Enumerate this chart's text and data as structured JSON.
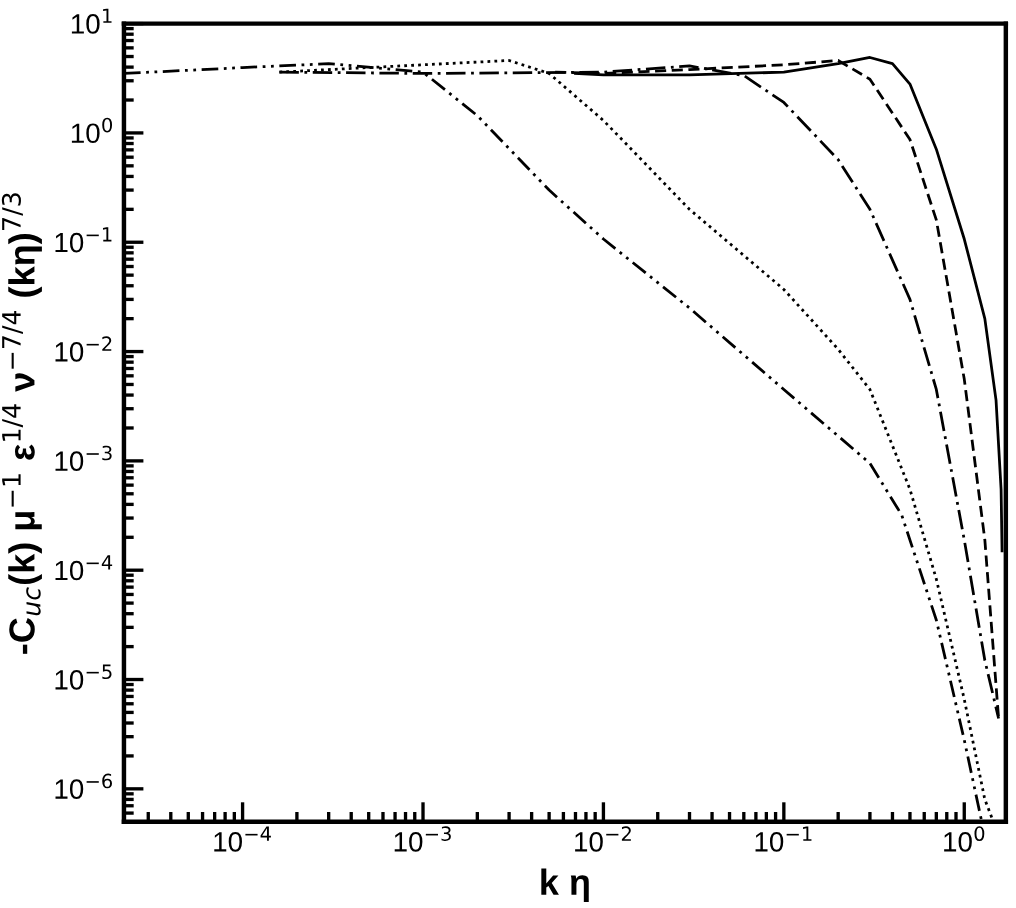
{
  "chart_data": {
    "type": "line",
    "xlabel": "k η",
    "ylabel": "-C$_{uc}$(k) μ$^{−1}$ ε$^{1/4}$ ν$^{−7/4}$ (kη)$^{7/3}$",
    "log": "xy",
    "grid": false,
    "legend": false,
    "marker": "none",
    "xlim": [
      2.2e-05,
      1.7
    ],
    "ylim": [
      5e-07,
      10
    ],
    "xticks": [
      {
        "value": 0.0001,
        "label": "10$^{−4}$"
      },
      {
        "value": 0.001,
        "label": "10$^{−3}$"
      },
      {
        "value": 0.01,
        "label": "10$^{−2}$"
      },
      {
        "value": 0.1,
        "label": "10$^{−1}$"
      },
      {
        "value": 1,
        "label": "10$^{0}$"
      }
    ],
    "yticks": [
      {
        "value": 1e-06,
        "label": "10$^{−6}$"
      },
      {
        "value": 1e-05,
        "label": "10$^{−5}$"
      },
      {
        "value": 0.0001,
        "label": "10$^{−4}$"
      },
      {
        "value": 0.001,
        "label": "10$^{−3}$"
      },
      {
        "value": 0.01,
        "label": "10$^{−2}$"
      },
      {
        "value": 0.1,
        "label": "10$^{−1}$"
      },
      {
        "value": 1,
        "label": "10$^{0}$"
      },
      {
        "value": 10,
        "label": "10$^{1}$"
      }
    ],
    "series": [
      {
        "color": "#000000",
        "line_style": "dashdotdot",
        "x": [
          2.2e-05,
          0.0001,
          0.0003,
          0.001,
          0.002,
          0.005,
          0.01,
          0.03,
          0.1,
          0.3,
          0.45,
          0.7,
          1.0,
          1.25
        ],
        "values": [
          3.5,
          3.96,
          4.3,
          3.6,
          1.44,
          0.3,
          0.107,
          0.025,
          0.0045,
          0.00095,
          0.00032,
          3.5e-05,
          2.8e-06,
          5e-07
        ]
      },
      {
        "color": "#000000",
        "line_style": "dotted",
        "x": [
          0.00016,
          0.001,
          0.003,
          0.005,
          0.01,
          0.03,
          0.1,
          0.2,
          0.3,
          0.5,
          0.7,
          1.0,
          1.3,
          1.45
        ],
        "values": [
          3.6,
          4.2,
          4.6,
          3.5,
          1.3,
          0.2,
          0.037,
          0.0105,
          0.0045,
          0.00055,
          8.3e-05,
          6.6e-06,
          8e-07,
          5e-07
        ]
      },
      {
        "color": "#000000",
        "line_style": "dashdot",
        "x": [
          0.00016,
          0.001,
          0.01,
          0.03,
          0.06,
          0.1,
          0.2,
          0.3,
          0.5,
          0.7,
          1.0,
          1.3,
          1.55
        ],
        "values": [
          3.6,
          3.5,
          3.6,
          4.1,
          3.35,
          1.9,
          0.57,
          0.2,
          0.03,
          0.0045,
          0.00019,
          1.5e-05,
          4.4e-06
        ]
      },
      {
        "color": "#000000",
        "line_style": "dashed",
        "x": [
          0.0054,
          0.01,
          0.03,
          0.1,
          0.2,
          0.3,
          0.5,
          0.7,
          1.0,
          1.3,
          1.55
        ],
        "values": [
          3.6,
          3.5,
          3.8,
          4.2,
          4.6,
          3.1,
          0.87,
          0.16,
          0.0056,
          0.00019,
          4.4e-06
        ]
      },
      {
        "color": "#000000",
        "line_style": "solid",
        "x": [
          0.007,
          0.01,
          0.03,
          0.1,
          0.2,
          0.3,
          0.4,
          0.5,
          0.7,
          1.0,
          1.3,
          1.5,
          1.6,
          1.62
        ],
        "values": [
          3.5,
          3.4,
          3.4,
          3.6,
          4.3,
          4.9,
          4.3,
          2.8,
          0.71,
          0.107,
          0.02,
          0.0036,
          0.00055,
          0.00015
        ]
      }
    ]
  }
}
